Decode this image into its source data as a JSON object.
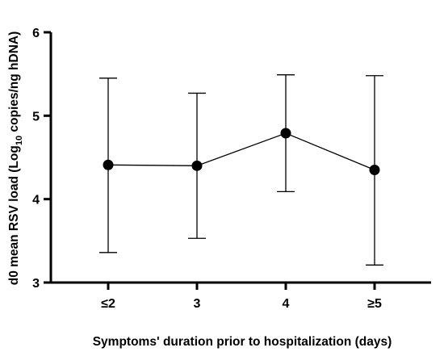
{
  "chart_data": {
    "type": "line",
    "title": "",
    "xlabel": "Symptoms' duration prior to hospitalization (days)",
    "ylabel": {
      "before_sub": "d0 mean RSV load (Log",
      "sub": "10",
      "after_sub": " copies/ng hDNA)"
    },
    "categories": [
      "≤2",
      "3",
      "4",
      "≥5"
    ],
    "ylim": [
      3,
      6
    ],
    "yticks": [
      3,
      4,
      5,
      6
    ],
    "grid": false,
    "legend": "none",
    "series": [
      {
        "values": [
          4.41,
          4.4,
          4.79,
          4.35
        ],
        "error_upper": [
          5.45,
          5.27,
          5.49,
          5.48
        ],
        "error_lower": [
          3.36,
          3.53,
          4.09,
          3.21
        ]
      }
    ],
    "colors": {
      "line": "#000000",
      "marker": "#000000"
    }
  }
}
